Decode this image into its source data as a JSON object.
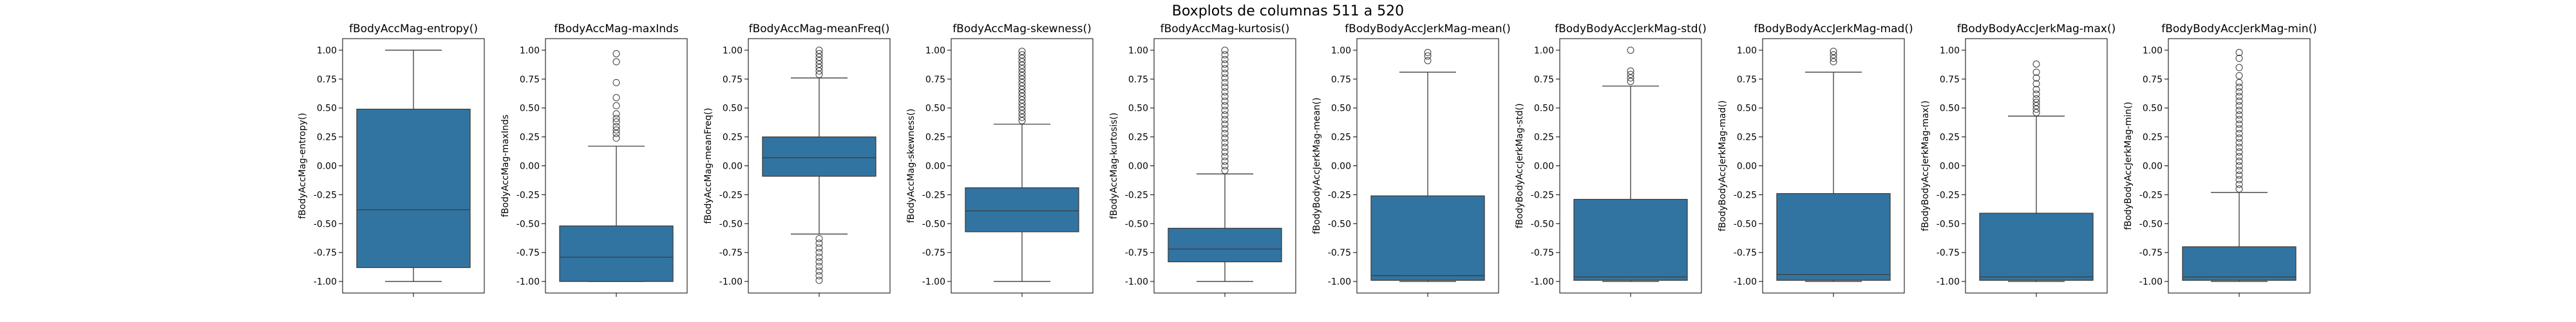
{
  "figure": {
    "title": "Boxplots de columnas 511 a 520"
  },
  "colors": {
    "box_fill": "#3274a1",
    "line": "#3c3c3c",
    "outlier": "#3c3c3c",
    "axis": "#000000"
  },
  "chart_data": [
    {
      "type": "box",
      "title": "fBodyAccMag-entropy()",
      "ylabel": "fBodyAccMag-entropy()",
      "ylim": [
        -1.1,
        1.1
      ],
      "yticks": [
        "-1.00",
        "-0.75",
        "-0.50",
        "-0.25",
        "0.00",
        "0.25",
        "0.50",
        "0.75",
        "1.00"
      ],
      "q1": -0.88,
      "median": -0.38,
      "q3": 0.49,
      "whisker_low": -1.0,
      "whisker_high": 1.0,
      "outliers": []
    },
    {
      "type": "box",
      "title": "fBodyAccMag-maxInds",
      "ylabel": "fBodyAccMag-maxInds",
      "ylim": [
        -1.1,
        1.1
      ],
      "yticks": [
        "-1.00",
        "-0.75",
        "-0.50",
        "-0.25",
        "0.00",
        "0.25",
        "0.50",
        "0.75",
        "1.00"
      ],
      "q1": -1.0,
      "median": -0.79,
      "q3": -0.52,
      "whisker_low": -1.0,
      "whisker_high": 0.17,
      "outliers": [
        0.24,
        0.28,
        0.31,
        0.34,
        0.38,
        0.41,
        0.45,
        0.52,
        0.59,
        0.72,
        0.9,
        0.97
      ]
    },
    {
      "type": "box",
      "title": "fBodyAccMag-meanFreq()",
      "ylabel": "fBodyAccMag-meanFreq()",
      "ylim": [
        -1.1,
        1.1
      ],
      "yticks": [
        "-1.00",
        "-0.75",
        "-0.50",
        "-0.25",
        "0.00",
        "0.25",
        "0.50",
        "0.75",
        "1.00"
      ],
      "q1": -0.09,
      "median": 0.07,
      "q3": 0.25,
      "whisker_low": -0.59,
      "whisker_high": 0.76,
      "outliers": [
        0.79,
        0.82,
        0.85,
        0.88,
        0.91,
        0.94,
        0.97,
        1.0,
        -0.63,
        -0.67,
        -0.71,
        -0.75,
        -0.79,
        -0.83,
        -0.87,
        -0.91,
        -0.95,
        -0.99
      ]
    },
    {
      "type": "box",
      "title": "fBodyAccMag-skewness()",
      "ylabel": "fBodyAccMag-skewness()",
      "ylim": [
        -1.1,
        1.1
      ],
      "yticks": [
        "-1.00",
        "-0.75",
        "-0.50",
        "-0.25",
        "0.00",
        "0.25",
        "0.50",
        "0.75",
        "1.00"
      ],
      "q1": -0.57,
      "median": -0.39,
      "q3": -0.19,
      "whisker_low": -1.0,
      "whisker_high": 0.36,
      "outliers": [
        0.39,
        0.42,
        0.45,
        0.48,
        0.51,
        0.54,
        0.57,
        0.6,
        0.63,
        0.66,
        0.69,
        0.72,
        0.75,
        0.78,
        0.81,
        0.84,
        0.87,
        0.9,
        0.93,
        0.96,
        0.99
      ]
    },
    {
      "type": "box",
      "title": "fBodyAccMag-kurtosis()",
      "ylabel": "fBodyAccMag-kurtosis()",
      "ylim": [
        -1.1,
        1.1
      ],
      "yticks": [
        "-1.00",
        "-0.75",
        "-0.50",
        "-0.25",
        "0.00",
        "0.25",
        "0.50",
        "0.75",
        "1.00"
      ],
      "q1": -0.83,
      "median": -0.72,
      "q3": -0.54,
      "whisker_low": -1.0,
      "whisker_high": -0.07,
      "outliers": [
        -0.04,
        0.0,
        0.04,
        0.08,
        0.12,
        0.16,
        0.2,
        0.24,
        0.28,
        0.32,
        0.36,
        0.4,
        0.44,
        0.48,
        0.52,
        0.56,
        0.6,
        0.64,
        0.68,
        0.72,
        0.76,
        0.8,
        0.84,
        0.88,
        0.92,
        0.96,
        1.0
      ]
    },
    {
      "type": "box",
      "title": "fBodyBodyAccJerkMag-mean()",
      "ylabel": "fBodyBodyAccJerkMag-mean()",
      "ylim": [
        -1.1,
        1.1
      ],
      "yticks": [
        "-1.00",
        "-0.75",
        "-0.50",
        "-0.25",
        "0.00",
        "0.25",
        "0.50",
        "0.75",
        "1.00"
      ],
      "q1": -0.99,
      "median": -0.95,
      "q3": -0.26,
      "whisker_low": -1.0,
      "whisker_high": 0.81,
      "outliers": [
        0.91,
        0.95,
        0.98
      ]
    },
    {
      "type": "box",
      "title": "fBodyBodyAccJerkMag-std()",
      "ylabel": "fBodyBodyAccJerkMag-std()",
      "ylim": [
        -1.1,
        1.1
      ],
      "yticks": [
        "-1.00",
        "-0.75",
        "-0.50",
        "-0.25",
        "0.00",
        "0.25",
        "0.50",
        "0.75",
        "1.00"
      ],
      "q1": -0.99,
      "median": -0.96,
      "q3": -0.29,
      "whisker_low": -1.0,
      "whisker_high": 0.69,
      "outliers": [
        0.73,
        0.76,
        0.79,
        0.82,
        1.0
      ]
    },
    {
      "type": "box",
      "title": "fBodyBodyAccJerkMag-mad()",
      "ylabel": "fBodyBodyAccJerkMag-mad()",
      "ylim": [
        -1.1,
        1.1
      ],
      "yticks": [
        "-1.00",
        "-0.75",
        "-0.50",
        "-0.25",
        "0.00",
        "0.25",
        "0.50",
        "0.75",
        "1.00"
      ],
      "q1": -0.99,
      "median": -0.94,
      "q3": -0.24,
      "whisker_low": -1.0,
      "whisker_high": 0.81,
      "outliers": [
        0.9,
        0.93,
        0.96,
        0.99
      ]
    },
    {
      "type": "box",
      "title": "fBodyBodyAccJerkMag-max()",
      "ylabel": "fBodyBodyAccJerkMag-max()",
      "ylim": [
        -1.1,
        1.1
      ],
      "yticks": [
        "-1.00",
        "-0.75",
        "-0.50",
        "-0.25",
        "0.00",
        "0.25",
        "0.50",
        "0.75",
        "1.00"
      ],
      "q1": -0.99,
      "median": -0.96,
      "q3": -0.41,
      "whisker_low": -1.0,
      "whisker_high": 0.43,
      "outliers": [
        0.46,
        0.49,
        0.52,
        0.55,
        0.58,
        0.62,
        0.66,
        0.71,
        0.76,
        0.81,
        0.88
      ]
    },
    {
      "type": "box",
      "title": "fBodyBodyAccJerkMag-min()",
      "ylabel": "fBodyBodyAccJerkMag-min()",
      "ylim": [
        -1.1,
        1.1
      ],
      "yticks": [
        "-1.00",
        "-0.75",
        "-0.50",
        "-0.25",
        "0.00",
        "0.25",
        "0.50",
        "0.75",
        "1.00"
      ],
      "q1": -0.99,
      "median": -0.96,
      "q3": -0.7,
      "whisker_low": -1.0,
      "whisker_high": -0.23,
      "outliers": [
        -0.2,
        -0.16,
        -0.12,
        -0.08,
        -0.04,
        0.0,
        0.04,
        0.08,
        0.12,
        0.16,
        0.2,
        0.24,
        0.28,
        0.32,
        0.36,
        0.4,
        0.44,
        0.48,
        0.52,
        0.56,
        0.6,
        0.64,
        0.68,
        0.72,
        0.78,
        0.85,
        0.93,
        0.98
      ]
    }
  ]
}
